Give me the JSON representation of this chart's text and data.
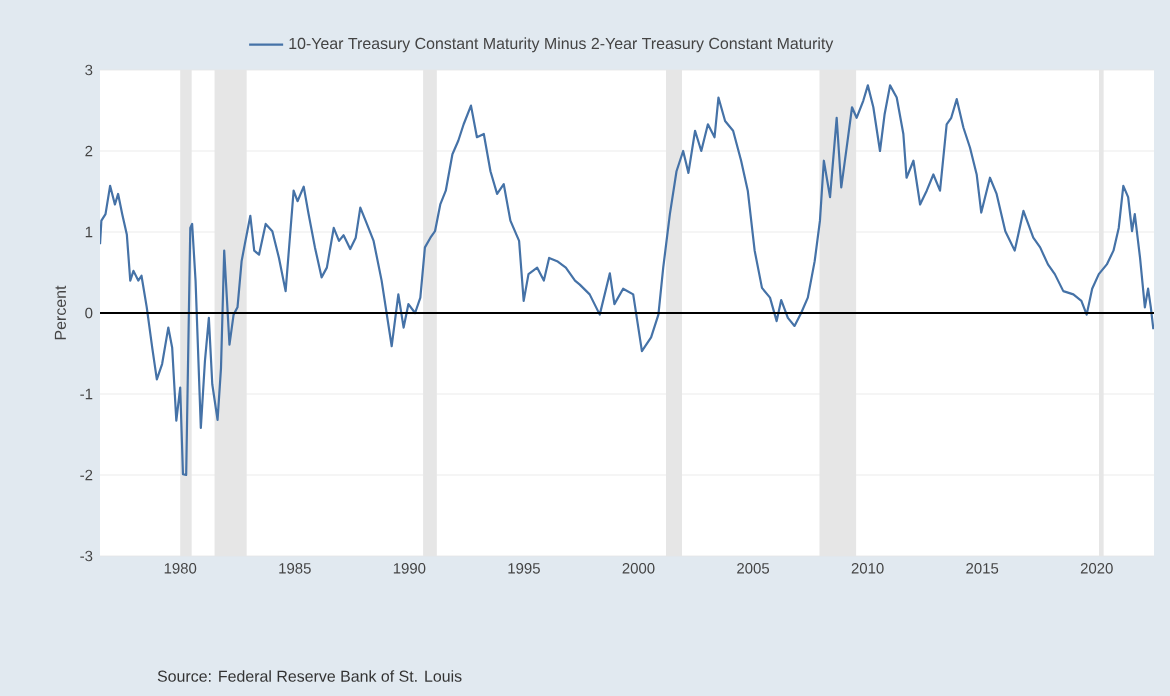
{
  "chart_data": {
    "type": "line",
    "ylabel": "Percent",
    "annotations": [
      "Source: Federal Reserve Bank of St. Louis"
    ],
    "xlim": [
      1976.5,
      2022.5
    ],
    "ylim": [
      -3,
      3
    ],
    "xticks": [
      1980,
      1985,
      1990,
      1995,
      2000,
      2005,
      2010,
      2015,
      2020
    ],
    "yticks": [
      -3,
      -2,
      -1,
      0,
      1,
      2,
      3
    ],
    "grid": "y",
    "legend": "top",
    "marker": "none",
    "line_style": "solid",
    "ref_lines": [
      {
        "axis": "y",
        "value": 0,
        "color": "#000000"
      }
    ],
    "bands": [
      {
        "axis": "x",
        "from": 1980.0,
        "to": 1980.5,
        "color": "#e6e6e6"
      },
      {
        "axis": "x",
        "from": 1981.5,
        "to": 1982.9,
        "color": "#e6e6e6"
      },
      {
        "axis": "x",
        "from": 1990.6,
        "to": 1991.2,
        "color": "#e6e6e6"
      },
      {
        "axis": "x",
        "from": 2001.2,
        "to": 2001.9,
        "color": "#e6e6e6"
      },
      {
        "axis": "x",
        "from": 2007.9,
        "to": 2009.5,
        "color": "#e6e6e6"
      },
      {
        "axis": "x",
        "from": 2020.1,
        "to": 2020.3,
        "color": "#e6e6e6"
      }
    ],
    "series": [
      {
        "name": "10-Year Treasury Constant Maturity Minus 2-Year Treasury Constant Maturity",
        "color": "#4572a7",
        "x": [
          1976.5,
          1976.56,
          1976.74,
          1976.94,
          1977.15,
          1977.29,
          1977.47,
          1977.67,
          1977.82,
          1977.96,
          1978.17,
          1978.31,
          1978.54,
          1978.78,
          1978.98,
          1979.21,
          1979.48,
          1979.65,
          1979.83,
          1980.0,
          1980.12,
          1980.26,
          1980.44,
          1980.52,
          1980.67,
          1980.9,
          1981.08,
          1981.25,
          1981.4,
          1981.63,
          1981.78,
          1981.92,
          1982.15,
          1982.33,
          1982.5,
          1982.68,
          1982.82,
          1983.06,
          1983.23,
          1983.44,
          1983.73,
          1984.02,
          1984.31,
          1984.6,
          1984.95,
          1985.12,
          1985.39,
          1985.59,
          1985.88,
          1986.17,
          1986.4,
          1986.7,
          1986.93,
          1987.13,
          1987.42,
          1987.66,
          1987.86,
          1988.09,
          1988.44,
          1988.79,
          1989.23,
          1989.52,
          1989.75,
          1989.96,
          1990.25,
          1990.48,
          1990.68,
          1990.92,
          1991.12,
          1991.35,
          1991.59,
          1991.88,
          1992.14,
          1992.37,
          1992.69,
          1992.95,
          1993.25,
          1993.54,
          1993.83,
          1994.12,
          1994.41,
          1994.79,
          1994.99,
          1995.2,
          1995.58,
          1995.87,
          1996.1,
          1996.45,
          1996.83,
          1997.23,
          1997.44,
          1997.87,
          1998.31,
          1998.75,
          1998.95,
          1999.33,
          1999.77,
          2000.15,
          2000.55,
          2000.87,
          2001.08,
          2001.37,
          2001.66,
          2001.95,
          2002.18,
          2002.47,
          2002.74,
          2003.03,
          2003.32,
          2003.49,
          2003.78,
          2004.13,
          2004.48,
          2004.77,
          2005.07,
          2005.39,
          2005.74,
          2006.03,
          2006.23,
          2006.52,
          2006.81,
          2007.1,
          2007.39,
          2007.69,
          2007.92,
          2008.09,
          2008.36,
          2008.65,
          2008.85,
          2009.08,
          2009.32,
          2009.52,
          2009.81,
          2010.01,
          2010.25,
          2010.54,
          2010.74,
          2010.98,
          2011.27,
          2011.56,
          2011.7,
          2012.0,
          2012.29,
          2012.58,
          2012.87,
          2013.16,
          2013.45,
          2013.65,
          2013.89,
          2014.18,
          2014.47,
          2014.76,
          2014.96,
          2015.34,
          2015.63,
          2016.01,
          2016.42,
          2016.8,
          2017.23,
          2017.53,
          2017.87,
          2018.17,
          2018.54,
          2018.98,
          2019.33,
          2019.56,
          2019.8,
          2020.09,
          2020.44,
          2020.73,
          2020.96,
          2021.16,
          2021.37,
          2021.54,
          2021.66,
          2021.89,
          2022.1,
          2022.24,
          2022.36,
          2022.47
        ],
        "values": [
          0.85,
          1.14,
          1.22,
          1.57,
          1.34,
          1.47,
          1.22,
          0.97,
          0.4,
          0.52,
          0.4,
          0.46,
          0.07,
          -0.43,
          -0.82,
          -0.63,
          -0.18,
          -0.43,
          -1.33,
          -0.92,
          -1.99,
          -2.0,
          1.05,
          1.1,
          0.4,
          -1.42,
          -0.59,
          -0.06,
          -0.88,
          -1.32,
          -0.68,
          0.77,
          -0.39,
          -0.02,
          0.07,
          0.64,
          0.85,
          1.2,
          0.77,
          0.72,
          1.1,
          1.01,
          0.68,
          0.27,
          1.51,
          1.38,
          1.56,
          1.24,
          0.81,
          0.44,
          0.56,
          1.05,
          0.89,
          0.96,
          0.79,
          0.93,
          1.3,
          1.14,
          0.89,
          0.4,
          -0.41,
          0.23,
          -0.18,
          0.11,
          0.0,
          0.19,
          0.81,
          0.93,
          1.01,
          1.34,
          1.51,
          1.96,
          2.13,
          2.33,
          2.56,
          2.17,
          2.21,
          1.75,
          1.47,
          1.59,
          1.14,
          0.89,
          0.15,
          0.48,
          0.56,
          0.4,
          0.68,
          0.64,
          0.56,
          0.4,
          0.35,
          0.23,
          -0.02,
          0.49,
          0.11,
          0.3,
          0.23,
          -0.47,
          -0.3,
          -0.02,
          0.56,
          1.22,
          1.75,
          2.0,
          1.73,
          2.25,
          2.0,
          2.33,
          2.17,
          2.66,
          2.37,
          2.25,
          1.88,
          1.51,
          0.77,
          0.31,
          0.19,
          -0.1,
          0.16,
          -0.06,
          -0.16,
          0.0,
          0.19,
          0.64,
          1.14,
          1.88,
          1.43,
          2.41,
          1.55,
          2.03,
          2.54,
          2.41,
          2.62,
          2.81,
          2.54,
          2.0,
          2.45,
          2.81,
          2.66,
          2.21,
          1.67,
          1.88,
          1.34,
          1.51,
          1.71,
          1.51,
          2.33,
          2.41,
          2.64,
          2.29,
          2.04,
          1.71,
          1.24,
          1.67,
          1.47,
          1.01,
          0.77,
          1.26,
          0.93,
          0.81,
          0.6,
          0.48,
          0.27,
          0.23,
          0.15,
          -0.02,
          0.3,
          0.48,
          0.6,
          0.77,
          1.05,
          1.57,
          1.43,
          1.01,
          1.22,
          0.68,
          0.07,
          0.3,
          0.07,
          -0.2
        ]
      }
    ]
  }
}
